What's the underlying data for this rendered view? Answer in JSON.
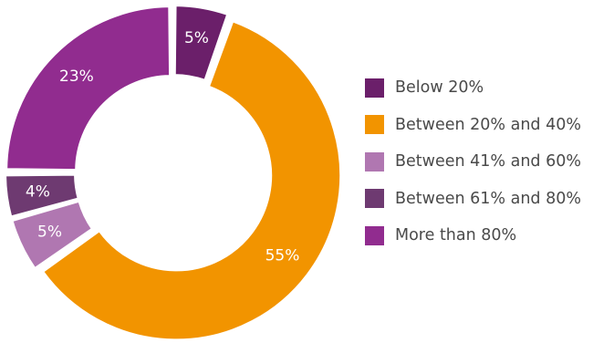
{
  "chart_data": {
    "type": "pie",
    "donut": true,
    "title": "",
    "categories": [
      "Below 20%",
      "Between 20% and 40%",
      "Between 41% and 60%",
      "Between 61% and 80%",
      "More than 80%"
    ],
    "values": [
      5,
      55,
      5,
      4,
      23
    ],
    "labels": [
      "5%",
      "55%",
      "5%",
      "4%",
      "23%"
    ],
    "colors": [
      "#6b1f6a",
      "#f29400",
      "#b077b1",
      "#6e3a71",
      "#912c8f"
    ],
    "legend_position": "right"
  }
}
